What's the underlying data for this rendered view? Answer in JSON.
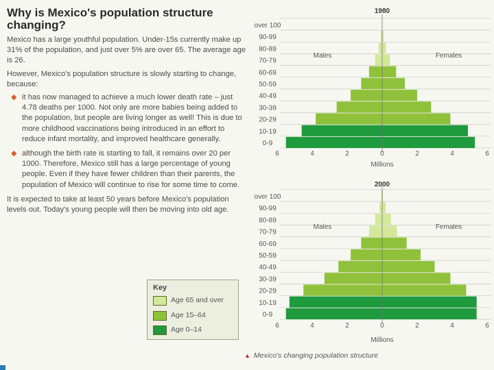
{
  "heading": "Why is Mexico's population structure changing?",
  "intro": "Mexico has a large youthful population. Under-15s currently make up 31% of the population, and just over 5% are over 65. The average age is 26.",
  "however": "However, Mexico's population structure is slowly starting to change, because:",
  "bullets": [
    "it has now managed to achieve a much lower death rate – just 4.78 deaths per 1000. Not only are more babies being added to the population, but people are living longer as well! This is due to more childhood vaccinations being introduced in an effort to reduce infant mortality, and improved healthcare generally.",
    "although the birth rate is starting to fall, it remains over 20 per 1000. Therefore, Mexico still has a large percentage of young people. Even if they have fewer children than their parents, the population of Mexico will continue to rise for some time to come."
  ],
  "closing": "It is expected to take at least 50 years before Mexico's population levels out. Today's young people will then be moving into old age.",
  "key": {
    "title": "Key",
    "items": [
      {
        "label": "Age 65 and over",
        "color": "#d4e89a"
      },
      {
        "label": "Age 15–64",
        "color": "#8fc23a"
      },
      {
        "label": "Age 0–14",
        "color": "#1f9a3c"
      }
    ]
  },
  "caption": "Mexico's changing population structure",
  "chart_data": [
    {
      "type": "bar",
      "title": "1980",
      "xlabel": "Millions",
      "categories": [
        "0-9",
        "10-19",
        "20-29",
        "30-39",
        "40-49",
        "50-59",
        "60-69",
        "70-79",
        "80-89",
        "90-99",
        "over 100"
      ],
      "xticks": [
        "6",
        "4",
        "2",
        "0",
        "2",
        "4",
        "6"
      ],
      "xlim": [
        -6,
        6
      ],
      "series": [
        {
          "name": "Males",
          "values": [
            5.5,
            4.6,
            3.8,
            2.6,
            1.8,
            1.2,
            0.75,
            0.4,
            0.2,
            0.08,
            0.02
          ]
        },
        {
          "name": "Females",
          "values": [
            5.3,
            4.9,
            3.9,
            2.8,
            2.0,
            1.3,
            0.8,
            0.45,
            0.22,
            0.08,
            0.02
          ]
        }
      ],
      "age_colors": [
        "#1f9a3c",
        "#1f9a3c",
        "#8fc23a",
        "#8fc23a",
        "#8fc23a",
        "#8fc23a",
        "#8fc23a",
        "#d4e89a",
        "#d4e89a",
        "#d4e89a",
        "#d4e89a"
      ],
      "side_labels": {
        "left": "Males",
        "right": "Females"
      }
    },
    {
      "type": "bar",
      "title": "2000",
      "xlabel": "Millions",
      "categories": [
        "0-9",
        "10-19",
        "20-29",
        "30-39",
        "40-49",
        "50-59",
        "60-69",
        "70-79",
        "80-89",
        "90-99",
        "over 100"
      ],
      "xticks": [
        "6",
        "4",
        "2",
        "0",
        "2",
        "4",
        "6"
      ],
      "xlim": [
        -6,
        6
      ],
      "series": [
        {
          "name": "Males",
          "values": [
            5.5,
            5.3,
            4.5,
            3.3,
            2.5,
            1.8,
            1.2,
            0.75,
            0.4,
            0.15,
            0.05
          ]
        },
        {
          "name": "Females",
          "values": [
            5.4,
            5.4,
            4.8,
            3.9,
            3.0,
            2.2,
            1.4,
            0.85,
            0.5,
            0.2,
            0.05
          ]
        }
      ],
      "age_colors": [
        "#1f9a3c",
        "#1f9a3c",
        "#8fc23a",
        "#8fc23a",
        "#8fc23a",
        "#8fc23a",
        "#8fc23a",
        "#d4e89a",
        "#d4e89a",
        "#d4e89a",
        "#d4e89a"
      ],
      "side_labels": {
        "left": "Males",
        "right": "Females"
      }
    }
  ]
}
